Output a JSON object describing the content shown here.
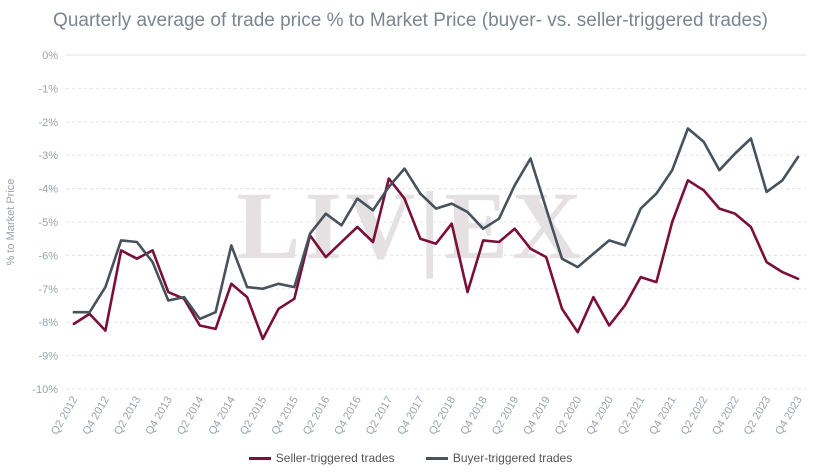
{
  "chart_data": {
    "type": "line",
    "title": "Quarterly average of trade price % to Market Price (buyer- vs. seller-triggered trades)",
    "ylabel": "% to Market Price",
    "xlabel": "",
    "ylim": [
      -10,
      0
    ],
    "yticks": [
      "0%",
      "-1%",
      "-2%",
      "-3%",
      "-4%",
      "-5%",
      "-6%",
      "-7%",
      "-8%",
      "-9%",
      "-10%"
    ],
    "x": [
      "Q2 2012",
      "Q3 2012",
      "Q4 2012",
      "Q1 2013",
      "Q2 2013",
      "Q3 2013",
      "Q4 2013",
      "Q1 2014",
      "Q2 2014",
      "Q3 2014",
      "Q4 2014",
      "Q1 2015",
      "Q2 2015",
      "Q3 2015",
      "Q4 2015",
      "Q1 2016",
      "Q2 2016",
      "Q3 2016",
      "Q4 2016",
      "Q1 2017",
      "Q2 2017",
      "Q3 2017",
      "Q4 2017",
      "Q1 2018",
      "Q2 2018",
      "Q3 2018",
      "Q4 2018",
      "Q1 2019",
      "Q2 2019",
      "Q3 2019",
      "Q4 2019",
      "Q1 2020",
      "Q2 2020",
      "Q3 2020",
      "Q4 2020",
      "Q1 2021",
      "Q2 2021",
      "Q3 2021",
      "Q4 2021",
      "Q1 2022",
      "Q2 2022",
      "Q3 2022",
      "Q4 2022",
      "Q1 2023",
      "Q2 2023",
      "Q3 2023",
      "Q4 2023"
    ],
    "xtick_labels": [
      "Q2 2012",
      "Q4 2012",
      "Q2 2013",
      "Q4 2013",
      "Q2 2014",
      "Q4 2014",
      "Q2 2015",
      "Q4 2015",
      "Q2 2016",
      "Q4 2016",
      "Q2 2017",
      "Q4 2017",
      "Q2 2018",
      "Q4 2018",
      "Q2 2019",
      "Q4 2019",
      "Q2 2020",
      "Q4 2020",
      "Q2 2021",
      "Q4 2021",
      "Q2 2022",
      "Q4 2022",
      "Q2 2023",
      "Q4 2023"
    ],
    "series": [
      {
        "name": "Seller-triggered trades",
        "color": "#7a0f3a",
        "values": [
          -8.05,
          -7.75,
          -8.25,
          -5.85,
          -6.1,
          -5.85,
          -7.1,
          -7.3,
          -8.1,
          -8.2,
          -6.85,
          -7.25,
          -8.5,
          -7.6,
          -7.3,
          -5.4,
          -6.05,
          -5.6,
          -5.15,
          -5.6,
          -3.7,
          -4.3,
          -5.5,
          -5.65,
          -5.05,
          -7.1,
          -5.55,
          -5.6,
          -5.2,
          -5.8,
          -6.05,
          -7.6,
          -8.3,
          -7.25,
          -8.1,
          -7.5,
          -6.65,
          -6.8,
          -5.0,
          -3.75,
          -4.05,
          -4.6,
          -4.75,
          -5.15,
          -6.2,
          -6.5,
          -6.7
        ]
      },
      {
        "name": "Buyer-triggered trades",
        "color": "#47525d",
        "values": [
          -7.7,
          -7.7,
          -6.95,
          -5.55,
          -5.6,
          -6.2,
          -7.35,
          -7.25,
          -7.9,
          -7.7,
          -5.7,
          -6.95,
          -7.0,
          -6.85,
          -6.95,
          -5.35,
          -4.75,
          -5.1,
          -4.3,
          -4.65,
          -3.95,
          -3.4,
          -4.15,
          -4.6,
          -4.45,
          -4.7,
          -5.2,
          -4.9,
          -3.9,
          -3.1,
          -4.6,
          -6.1,
          -6.35,
          -5.95,
          -5.55,
          -5.7,
          -4.6,
          -4.15,
          -3.45,
          -2.2,
          -2.6,
          -3.45,
          -2.95,
          -2.5,
          -4.1,
          -3.75,
          -3.05
        ]
      }
    ],
    "grid": true,
    "legend": "bottom"
  },
  "watermark": "LIV|EX"
}
